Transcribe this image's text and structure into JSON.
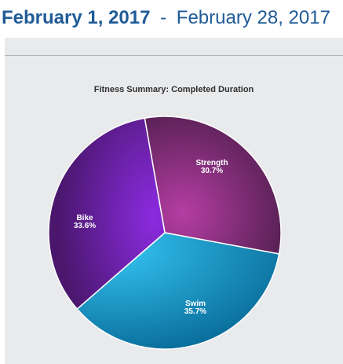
{
  "header": {
    "start_date": "February 1, 2017",
    "separator": "-",
    "end_date": "February 28, 2017"
  },
  "chart_data": {
    "type": "pie",
    "title": "Fitness Summary: Completed Duration",
    "slices": [
      {
        "name": "Strength",
        "value": 30.7,
        "label": "30.7%",
        "color": "#8d2a80"
      },
      {
        "name": "Swim",
        "value": 35.7,
        "label": "35.7%",
        "color": "#22a8dc"
      },
      {
        "name": "Bike",
        "value": 33.6,
        "label": "33.6%",
        "color": "#7f25b8"
      }
    ]
  }
}
